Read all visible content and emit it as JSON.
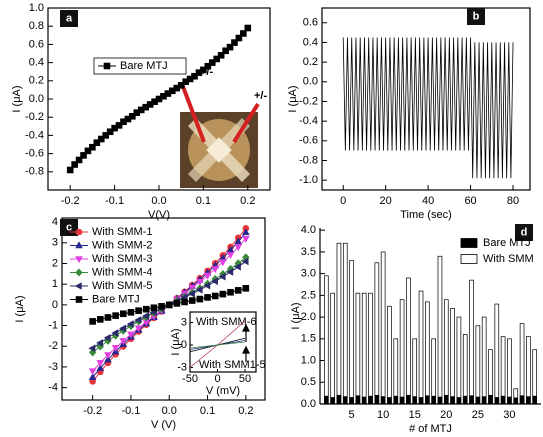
{
  "chart_data": [
    {
      "type": "line",
      "label": "a",
      "xlabel": "V(V)",
      "ylabel": "I (μA)",
      "xlim": [
        -0.25,
        0.25
      ],
      "ylim": [
        -1.0,
        1.0
      ],
      "xticks": [
        -0.2,
        -0.1,
        {
          "value": 0,
          "label": "0.0"
        },
        0.1,
        0.2
      ],
      "yticks": [
        -0.8,
        -0.6,
        -0.4,
        -0.2,
        {
          "value": 0,
          "label": "0.0"
        },
        0.2,
        0.4,
        0.6,
        0.8,
        {
          "value": 1,
          "label": "1.0"
        }
      ],
      "legend": "center left",
      "legend_frame": true,
      "annotations": [
        "+/-",
        "+/-"
      ],
      "series": [
        {
          "name": "Bare MTJ",
          "color": "#000000",
          "marker": "square",
          "x": [
            -0.2,
            -0.19,
            -0.18,
            -0.17,
            -0.16,
            -0.15,
            -0.14,
            -0.13,
            -0.12,
            -0.11,
            -0.1,
            -0.09,
            -0.08,
            -0.07,
            -0.06,
            -0.05,
            -0.04,
            -0.03,
            -0.02,
            -0.01,
            0,
            0.01,
            0.02,
            0.03,
            0.04,
            0.05,
            0.06,
            0.07,
            0.08,
            0.09,
            0.1,
            0.11,
            0.12,
            0.13,
            0.14,
            0.15,
            0.16,
            0.17,
            0.18,
            0.19,
            0.2
          ],
          "values": [
            -0.78,
            -0.72,
            -0.67,
            -0.62,
            -0.57,
            -0.53,
            -0.48,
            -0.44,
            -0.4,
            -0.36,
            -0.32,
            -0.29,
            -0.25,
            -0.22,
            -0.19,
            -0.15,
            -0.12,
            -0.09,
            -0.06,
            -0.03,
            0,
            0.03,
            0.06,
            0.09,
            0.12,
            0.15,
            0.19,
            0.22,
            0.25,
            0.29,
            0.32,
            0.36,
            0.4,
            0.44,
            0.48,
            0.53,
            0.57,
            0.62,
            0.67,
            0.72,
            0.78
          ]
        }
      ]
    },
    {
      "type": "line",
      "label": "b",
      "xlabel": "Time (sec)",
      "ylabel": "I (μA)",
      "xlim": [
        -10,
        88
      ],
      "ylim": [
        -1.1,
        0.75
      ],
      "xticks": [
        0,
        20,
        40,
        60,
        80
      ],
      "yticks": [
        {
          "value": -1,
          "label": "-1.0"
        },
        -0.8,
        -0.6,
        -0.4,
        -0.2,
        {
          "value": 0,
          "label": "0.0"
        },
        0.2,
        0.4,
        0.6
      ],
      "series": [
        {
          "color": "#000000",
          "x": [
            0,
            1,
            2,
            3,
            4,
            5,
            6,
            7,
            8,
            9,
            10,
            11,
            12,
            13,
            14,
            15,
            16,
            17,
            18,
            19,
            20,
            21,
            22,
            23,
            24,
            25,
            26,
            27,
            28,
            29,
            30,
            31,
            32,
            33,
            34,
            35,
            36,
            37,
            38,
            39,
            40,
            41,
            42,
            43,
            44,
            45,
            46,
            47,
            48,
            49,
            50,
            51,
            52,
            53,
            54,
            55,
            56,
            57,
            58,
            59,
            60,
            61,
            62,
            63,
            64,
            65,
            66,
            67,
            68,
            69,
            70,
            71,
            72,
            73,
            74,
            75,
            76,
            77,
            78,
            79,
            80
          ],
          "values": [
            0.45,
            -0.7,
            0.45,
            -0.7,
            0.45,
            -0.7,
            0.45,
            -0.7,
            0.45,
            -0.7,
            0.45,
            -0.7,
            0.45,
            -0.7,
            0.45,
            -0.7,
            0.45,
            -0.7,
            0.45,
            -0.7,
            0.45,
            -0.7,
            0.45,
            -0.7,
            0.45,
            -0.7,
            0.45,
            -0.7,
            0.45,
            -0.7,
            0.45,
            -0.7,
            0.45,
            -0.7,
            0.45,
            -0.7,
            0.45,
            -0.7,
            0.45,
            -0.7,
            0.45,
            -0.7,
            0.45,
            -0.7,
            0.45,
            -0.7,
            0.45,
            -0.7,
            0.45,
            -0.7,
            0.45,
            -0.7,
            0.45,
            -0.7,
            0.45,
            -0.7,
            0.45,
            -0.7,
            0.45,
            -0.7,
            0.45,
            -0.98,
            0.4,
            -0.98,
            0.4,
            -0.98,
            0.4,
            -0.98,
            0.4,
            -0.98,
            0.4,
            -0.98,
            0.4,
            -0.98,
            0.4,
            -0.98,
            0.4,
            -0.98,
            0.4,
            -0.98,
            0.4
          ]
        }
      ]
    },
    {
      "type": "line",
      "label": "c",
      "xlabel": "V (V)",
      "ylabel": "I (μA)",
      "xlim": [
        -0.28,
        0.25
      ],
      "ylim": [
        -4.6,
        4.2
      ],
      "xticks": [
        -0.2,
        -0.1,
        {
          "value": 0,
          "label": "0.0"
        },
        0.1,
        0.2
      ],
      "yticks": [
        -4,
        -3,
        -2,
        -1,
        0,
        1,
        2,
        3,
        4
      ],
      "legend": "upper left",
      "series": [
        {
          "name": "With SMM-1",
          "color": "#e8333a",
          "marker": "circle",
          "x": [
            -0.2,
            -0.18,
            -0.16,
            -0.14,
            -0.12,
            -0.1,
            -0.08,
            -0.06,
            -0.04,
            -0.02,
            0,
            0.02,
            0.04,
            0.06,
            0.08,
            0.1,
            0.12,
            0.14,
            0.16,
            0.18,
            0.2
          ],
          "values": [
            -3.7,
            -3.24,
            -2.8,
            -2.39,
            -2.01,
            -1.64,
            -1.29,
            -0.96,
            -0.63,
            -0.32,
            0,
            0.32,
            0.63,
            0.96,
            1.29,
            1.64,
            2.01,
            2.39,
            2.8,
            3.24,
            3.7
          ]
        },
        {
          "name": "With SMM-2",
          "color": "#26268f",
          "marker": "triangle-up",
          "x": [
            -0.2,
            -0.18,
            -0.16,
            -0.14,
            -0.12,
            -0.1,
            -0.08,
            -0.06,
            -0.04,
            -0.02,
            0,
            0.02,
            0.04,
            0.06,
            0.08,
            0.1,
            0.12,
            0.14,
            0.16,
            0.18,
            0.2
          ],
          "values": [
            -3.5,
            -3.06,
            -2.65,
            -2.26,
            -1.9,
            -1.55,
            -1.22,
            -0.91,
            -0.6,
            -0.3,
            0,
            0.3,
            0.6,
            0.91,
            1.22,
            1.55,
            1.9,
            2.26,
            2.65,
            3.06,
            3.5
          ]
        },
        {
          "name": "With SMM-3",
          "color": "#e040e0",
          "marker": "triangle-down",
          "x": [
            -0.2,
            -0.18,
            -0.16,
            -0.14,
            -0.12,
            -0.1,
            -0.08,
            -0.06,
            -0.04,
            -0.02,
            0,
            0.02,
            0.04,
            0.06,
            0.08,
            0.1,
            0.12,
            0.14,
            0.16,
            0.18,
            0.2
          ],
          "values": [
            -3.2,
            -2.8,
            -2.42,
            -2.07,
            -1.74,
            -1.42,
            -1.12,
            -0.83,
            -0.55,
            -0.27,
            0,
            0.27,
            0.55,
            0.83,
            1.12,
            1.42,
            1.74,
            2.07,
            2.42,
            2.8,
            3.2
          ]
        },
        {
          "name": "With SMM-4",
          "color": "#3a8a3a",
          "marker": "diamond",
          "x": [
            -0.2,
            -0.18,
            -0.16,
            -0.14,
            -0.12,
            -0.1,
            -0.08,
            -0.06,
            -0.04,
            -0.02,
            0,
            0.02,
            0.04,
            0.06,
            0.08,
            0.1,
            0.12,
            0.14,
            0.16,
            0.18,
            0.2
          ],
          "values": [
            -2.3,
            -2.01,
            -1.74,
            -1.49,
            -1.25,
            -1.02,
            -0.8,
            -0.6,
            -0.39,
            -0.2,
            0,
            0.2,
            0.39,
            0.6,
            0.8,
            1.02,
            1.25,
            1.49,
            1.74,
            2.01,
            2.3
          ]
        },
        {
          "name": "With SMM-5",
          "color": "#2a2a6a",
          "marker": "triangle-left",
          "x": [
            -0.2,
            -0.18,
            -0.16,
            -0.14,
            -0.12,
            -0.1,
            -0.08,
            -0.06,
            -0.04,
            -0.02,
            0,
            0.02,
            0.04,
            0.06,
            0.08,
            0.1,
            0.12,
            0.14,
            0.16,
            0.18,
            0.2
          ],
          "values": [
            -2.1,
            -1.84,
            -1.59,
            -1.36,
            -1.14,
            -0.93,
            -0.73,
            -0.54,
            -0.36,
            -0.18,
            0,
            0.18,
            0.36,
            0.54,
            0.73,
            0.93,
            1.14,
            1.36,
            1.59,
            1.84,
            2.1
          ]
        },
        {
          "name": "Bare MTJ",
          "color": "#000000",
          "marker": "square",
          "x": [
            -0.2,
            -0.18,
            -0.16,
            -0.14,
            -0.12,
            -0.1,
            -0.08,
            -0.06,
            -0.04,
            -0.02,
            0,
            0.02,
            0.04,
            0.06,
            0.08,
            0.1,
            0.12,
            0.14,
            0.16,
            0.18,
            0.2
          ],
          "values": [
            -0.8,
            -0.7,
            -0.61,
            -0.52,
            -0.43,
            -0.36,
            -0.28,
            -0.21,
            -0.14,
            -0.07,
            0,
            0.07,
            0.14,
            0.21,
            0.28,
            0.36,
            0.43,
            0.52,
            0.61,
            0.7,
            0.8
          ]
        }
      ]
    },
    {
      "type": "line",
      "xlabel": "V (mV)",
      "ylabel": "I (μA)",
      "xlim": [
        -50,
        70
      ],
      "ylim": [
        -3.6,
        4.4
      ],
      "xticks": [
        -50,
        0,
        50
      ],
      "yticks": [
        -3,
        0,
        3
      ],
      "annotations": [
        "With SMM-6",
        "With SMM1-5"
      ],
      "series": [
        {
          "color": "#b03060",
          "x": [
            -50,
            -25,
            0,
            25,
            50
          ],
          "values": [
            -3,
            -1.5,
            0,
            1.6,
            3.2
          ]
        },
        {
          "color": "#000000",
          "x": [
            -50,
            -25,
            0,
            25,
            50
          ],
          "values": [
            -0.9,
            -0.45,
            0,
            0.45,
            0.9
          ]
        },
        {
          "color": "#26268f",
          "x": [
            -50,
            -25,
            0,
            25,
            50
          ],
          "values": [
            -0.6,
            -0.3,
            0,
            0.3,
            0.6
          ]
        },
        {
          "color": "#3a8a3a",
          "x": [
            -50,
            -25,
            0,
            25,
            50
          ],
          "values": [
            -0.4,
            -0.2,
            0,
            0.2,
            0.4
          ]
        }
      ]
    },
    {
      "type": "bar",
      "label": "d",
      "xlabel": "# of MTJ",
      "ylabel": "I (μA)",
      "xlim": [
        0,
        35
      ],
      "ylim": [
        0,
        4.05
      ],
      "xticks": [
        5,
        10,
        15,
        20,
        25,
        30
      ],
      "yticks": [
        {
          "value": 0,
          "label": "0.0"
        },
        0.5,
        {
          "value": 1,
          "label": "1.0"
        },
        1.5,
        {
          "value": 2,
          "label": "2.0"
        },
        2.5,
        {
          "value": 3,
          "label": "3.0"
        },
        3.5,
        {
          "value": 4,
          "label": "4.0"
        }
      ],
      "legend": "upper right",
      "x": [
        1,
        2,
        3,
        4,
        5,
        6,
        7,
        8,
        9,
        10,
        11,
        12,
        13,
        14,
        15,
        16,
        17,
        18,
        19,
        20,
        21,
        22,
        23,
        24,
        25,
        26,
        27,
        28,
        29,
        30,
        31,
        32,
        33,
        34
      ],
      "series": [
        {
          "name": "Bare MTJ",
          "color": "#000000",
          "values": [
            0.18,
            0.15,
            0.2,
            0.17,
            0.15,
            0.19,
            0.16,
            0.18,
            0.2,
            0.17,
            0.15,
            0.18,
            0.16,
            0.2,
            0.17,
            0.15,
            0.19,
            0.18,
            0.16,
            0.2,
            0.17,
            0.15,
            0.18,
            0.19,
            0.16,
            0.17,
            0.2,
            0.15,
            0.18,
            0.16,
            0.14,
            0.19,
            0.17,
            0.18
          ]
        },
        {
          "name": "With SMM",
          "color": "#ffffff",
          "values": [
            2.95,
            2.55,
            3.7,
            3.7,
            3.3,
            2.55,
            2.55,
            2.55,
            3.25,
            3.5,
            2.25,
            1.5,
            2.4,
            2.9,
            1.5,
            2.6,
            2.35,
            1.5,
            3.4,
            2.4,
            2.2,
            2.0,
            1.6,
            2.85,
            1.8,
            2.0,
            1.25,
            2.3,
            1.55,
            1.5,
            0.35,
            1.85,
            1.55,
            1.25
          ]
        }
      ]
    }
  ]
}
